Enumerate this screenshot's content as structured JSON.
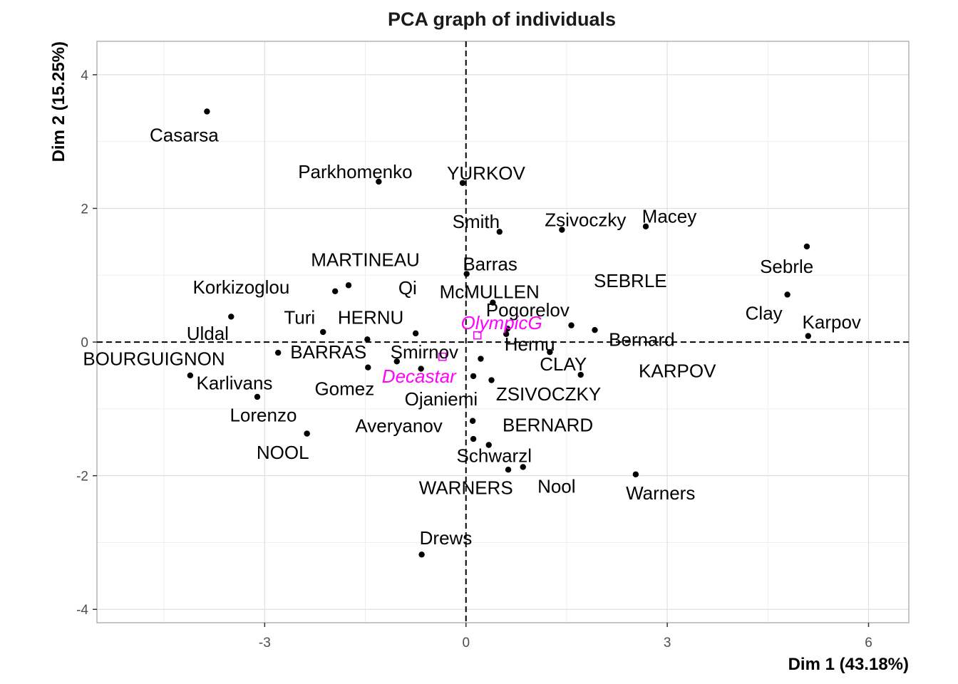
{
  "chart_data": {
    "type": "scatter",
    "title": "PCA graph of individuals",
    "xlabel": "Dim 1 (43.18%)",
    "ylabel": "Dim 2 (15.25%)",
    "xlim": [
      -5.5,
      6.6
    ],
    "ylim": [
      -4.2,
      4.5
    ],
    "xticks": [
      -3,
      0,
      3,
      6
    ],
    "yticks": [
      -4,
      -2,
      0,
      2,
      4
    ],
    "grid": true,
    "reference_lines": {
      "x": 0,
      "y": 0,
      "style": "dashed"
    },
    "point_color": "#000000",
    "supplementary_color": "#FF00FF",
    "points": [
      {
        "name": "Casarsa",
        "x": -3.86,
        "y": 3.45,
        "lx": -4.2,
        "ly": 3.1
      },
      {
        "name": "Parkhomenko",
        "x": -1.3,
        "y": 2.4,
        "lx": -1.65,
        "ly": 2.55
      },
      {
        "name": "YURKOV",
        "x": -0.05,
        "y": 2.38,
        "lx": 0.3,
        "ly": 2.53
      },
      {
        "name": "Smith",
        "x": 0.5,
        "y": 1.65,
        "lx": 0.15,
        "ly": 1.8
      },
      {
        "name": "Zsivoczky",
        "x": 1.43,
        "y": 1.68,
        "lx": 1.78,
        "ly": 1.83
      },
      {
        "name": "Macey",
        "x": 2.68,
        "y": 1.73,
        "lx": 3.03,
        "ly": 1.88
      },
      {
        "name": "Sebrle",
        "x": 5.08,
        "y": 1.43,
        "lx": 4.78,
        "ly": 1.13
      },
      {
        "name": "Clay",
        "x": 4.79,
        "y": 0.71,
        "lx": 4.44,
        "ly": 0.43
      },
      {
        "name": "Karpov",
        "x": 5.1,
        "y": 0.09,
        "lx": 5.45,
        "ly": 0.3
      },
      {
        "name": "MARTINEAU",
        "x": -1.75,
        "y": 0.85,
        "lx": -1.5,
        "ly": 1.23
      },
      {
        "name": "Korkizoglou",
        "x": -1.95,
        "y": 0.76,
        "lx": -3.35,
        "ly": 0.82
      },
      {
        "name": "Barras",
        "x": 0.01,
        "y": 1.02,
        "lx": 0.36,
        "ly": 1.17
      },
      {
        "name": "Qi",
        "x": -0.75,
        "y": 0.13,
        "lx": -0.87,
        "ly": 0.81
      },
      {
        "name": "McMULLEN",
        "x": 0.4,
        "y": 0.59,
        "lx": 0.35,
        "ly": 0.75
      },
      {
        "name": "SEBRLE",
        "x": 1.57,
        "y": 0.25,
        "lx": 2.45,
        "ly": 0.92
      },
      {
        "name": "Pogorelov",
        "x": 0.62,
        "y": 0.2,
        "lx": 0.92,
        "ly": 0.48
      },
      {
        "name": "Turi",
        "x": -2.13,
        "y": 0.15,
        "lx": -2.48,
        "ly": 0.37
      },
      {
        "name": "HERNU",
        "x": -1.47,
        "y": 0.04,
        "lx": -1.42,
        "ly": 0.37
      },
      {
        "name": "Uldal",
        "x": -3.5,
        "y": 0.38,
        "lx": -3.85,
        "ly": 0.13
      },
      {
        "name": "Hernu",
        "x": 0.6,
        "y": 0.12,
        "lx": 0.95,
        "ly": -0.03
      },
      {
        "name": "Bernard",
        "x": 1.92,
        "y": 0.18,
        "lx": 2.62,
        "ly": 0.04
      },
      {
        "name": "BOURGUIGNON",
        "x": -4.11,
        "y": -0.5,
        "lx": -4.65,
        "ly": -0.25
      },
      {
        "name": "BARRAS",
        "x": -2.8,
        "y": -0.16,
        "lx": -2.05,
        "ly": -0.15
      },
      {
        "name": "Smirnov",
        "x": -1.03,
        "y": -0.29,
        "lx": -0.62,
        "ly": -0.15
      },
      {
        "name": "CLAY",
        "x": 1.25,
        "y": -0.15,
        "lx": 1.45,
        "ly": -0.33
      },
      {
        "name": "KARPOV",
        "x": 1.71,
        "y": -0.49,
        "lx": 3.15,
        "ly": -0.43
      },
      {
        "name": "Karlivans",
        "x": -3.11,
        "y": -0.82,
        "lx": -3.45,
        "ly": -0.61
      },
      {
        "name": "Gomez",
        "x": -1.46,
        "y": -0.38,
        "lx": -1.81,
        "ly": -0.7
      },
      {
        "name": "Ojaniemi",
        "x": -0.67,
        "y": -0.4,
        "lx": -0.37,
        "ly": -0.85
      },
      {
        "name": "ZSIVOCZKY",
        "x": 0.38,
        "y": -0.57,
        "lx": 1.23,
        "ly": -0.78
      },
      {
        "name": "unlabeled-a",
        "x": 0.11,
        "y": -0.51
      },
      {
        "name": "unlabeled-b",
        "x": 0.22,
        "y": -0.25
      },
      {
        "name": "Lorenzo",
        "x": -2.37,
        "y": -1.37,
        "lx": -3.02,
        "ly": -1.09
      },
      {
        "name": "Averyanov",
        "x": 0.11,
        "y": -1.45,
        "lx": -1.0,
        "ly": -1.25
      },
      {
        "name": "BERNARD",
        "x": 0.1,
        "y": -1.18,
        "lx": 1.22,
        "ly": -1.24
      },
      {
        "name": "NOOL",
        "x": -2.37,
        "y": -1.37,
        "lx": -2.73,
        "ly": -1.65
      },
      {
        "name": "Schwarzl",
        "x": 0.34,
        "y": -1.54,
        "lx": 0.42,
        "ly": -1.7
      },
      {
        "name": "Nool",
        "x": 0.85,
        "y": -1.87,
        "lx": 1.35,
        "ly": -2.16
      },
      {
        "name": "WARNERS",
        "x": 0.63,
        "y": -1.91,
        "lx": 0.0,
        "ly": -2.18
      },
      {
        "name": "Warners",
        "x": 2.53,
        "y": -1.98,
        "lx": 2.9,
        "ly": -2.26
      },
      {
        "name": "Drews",
        "x": -0.66,
        "y": -3.18,
        "lx": -0.3,
        "ly": -2.93
      }
    ],
    "supplementary_points": [
      {
        "name": "OlympicG",
        "x": 0.17,
        "y": 0.1,
        "lx": 0.53,
        "ly": 0.29
      },
      {
        "name": "Decastar",
        "x": -0.35,
        "y": -0.22,
        "lx": -0.7,
        "ly": -0.51
      }
    ]
  }
}
